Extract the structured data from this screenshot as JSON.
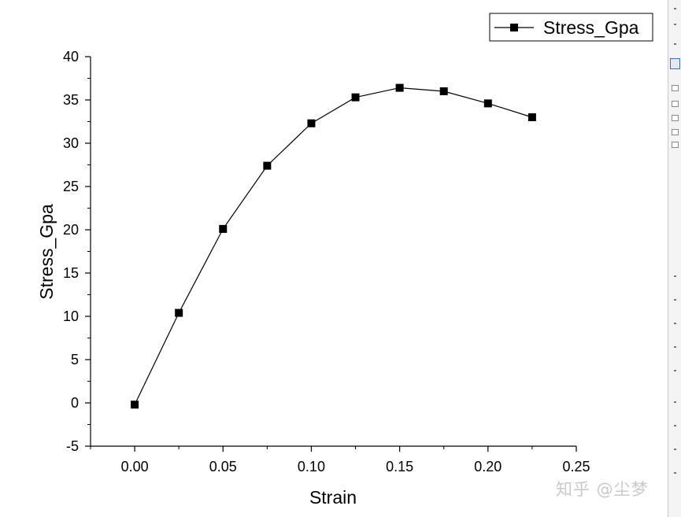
{
  "chart_data": {
    "type": "line",
    "xlabel": "Strain",
    "ylabel": "Stress_Gpa",
    "xlim": [
      -0.025,
      0.25
    ],
    "ylim": [
      -5,
      40
    ],
    "x_ticks": [
      "0.00",
      "0.05",
      "0.10",
      "0.15",
      "0.20",
      "0.25"
    ],
    "x_tick_values": [
      0,
      0.05,
      0.1,
      0.15,
      0.2,
      0.25
    ],
    "y_ticks": [
      "-5",
      "0",
      "5",
      "10",
      "15",
      "20",
      "25",
      "30",
      "35",
      "40"
    ],
    "y_tick_values": [
      -5,
      0,
      5,
      10,
      15,
      20,
      25,
      30,
      35,
      40
    ],
    "grid": false,
    "legend_position": "top-right",
    "series": [
      {
        "name": "Stress_Gpa",
        "marker": "square",
        "color": "#000000",
        "x": [
          0,
          0.025,
          0.05,
          0.075,
          0.1,
          0.125,
          0.15,
          0.175,
          0.2,
          0.225
        ],
        "y": [
          -0.2,
          10.4,
          20.1,
          27.4,
          32.3,
          35.3,
          36.4,
          36.0,
          34.6,
          33.0
        ]
      }
    ]
  },
  "watermark": "知乎 @尘梦"
}
